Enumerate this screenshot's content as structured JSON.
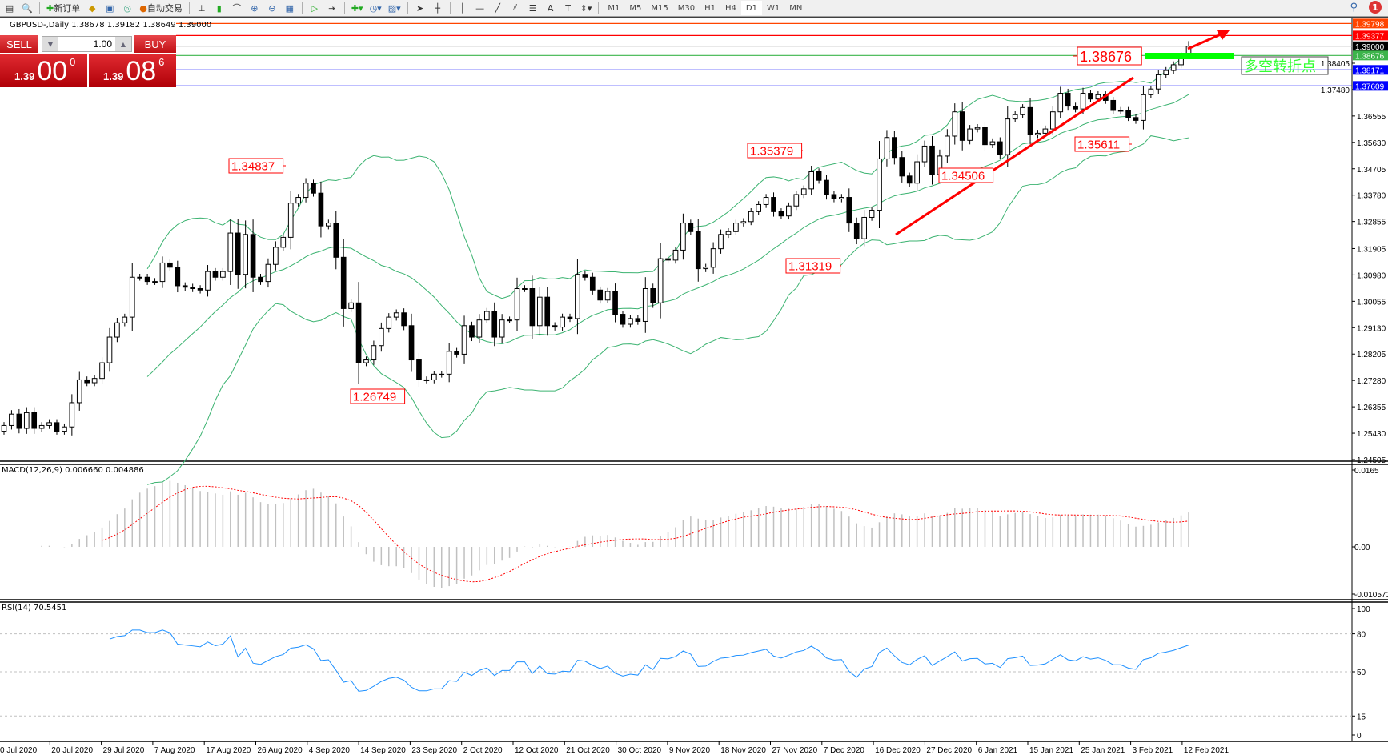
{
  "toolbar": {
    "new_order": "新订单",
    "auto_trading": "自动交易",
    "timeframes": [
      "M1",
      "M5",
      "M15",
      "M30",
      "H1",
      "H4",
      "D1",
      "W1",
      "MN"
    ],
    "icons": [
      "chart-icon",
      "profile-icon",
      "new-order-icon",
      "market-icon",
      "navigator-icon",
      "signal-icon",
      "autotrade-icon",
      "bar-chart-icon",
      "candle-chart-icon",
      "line-chart-icon",
      "zoom-in-icon",
      "zoom-out-icon",
      "tile-icon",
      "autoscroll-icon",
      "shift-icon",
      "indicator-icon",
      "period-icon",
      "template-icon",
      "cursor-icon",
      "crosshair-icon",
      "vline-icon",
      "hline-icon",
      "trendline-icon",
      "channel-icon",
      "fibo-icon",
      "text-icon",
      "label-icon",
      "arrows-icon"
    ],
    "notifications": "1"
  },
  "chart": {
    "header": "GBPUSD-,Daily  1.38678 1.39182 1.38649 1.39000",
    "trade_panel": {
      "sell": "SELL",
      "buy": "BUY",
      "lot": "1.00",
      "sell_small": "1.39",
      "sell_big": "00",
      "sell_sup": "0",
      "buy_small": "1.39",
      "buy_big": "08",
      "buy_sup": "6"
    },
    "colors": {
      "bull": "#ffffff",
      "bear": "#000000",
      "bands": "#3cb371",
      "macd_hist": "#c0c0c0",
      "macd_signal": "#ff0000",
      "rsi": "#1e90ff"
    },
    "price_axis": [
      "1.24505",
      "1.25430",
      "1.26355",
      "1.27280",
      "1.28205",
      "1.29130",
      "1.30055",
      "1.30980",
      "1.31905",
      "1.32855",
      "1.33780",
      "1.34705",
      "1.35630",
      "1.36555",
      "1.37480",
      "1.38405"
    ],
    "levels": [
      {
        "value": 1.39798,
        "label": "1.39798",
        "color": "#ff4500"
      },
      {
        "value": 1.39377,
        "label": "1.39377",
        "color": "#ff0000"
      },
      {
        "value": 1.39,
        "label": "1.39000",
        "color": "#000000",
        "line": "#c0c0c0"
      },
      {
        "value": 1.38676,
        "label": "1.38676",
        "color": "#3cb44b"
      },
      {
        "value": 1.38171,
        "label": "1.38171",
        "color": "#0000ff"
      },
      {
        "value": 1.37609,
        "label": "1.37609",
        "color": "#0000ff"
      }
    ],
    "annotations": [
      "1.34837",
      "1.26749",
      "1.35379",
      "1.31319",
      "1.34506",
      "1.35611",
      "1.38676"
    ],
    "note_text": "多空转折点",
    "time_axis": [
      "0 Jul 2020",
      "20 Jul 2020",
      "29 Jul 2020",
      "7 Aug 2020",
      "17 Aug 2020",
      "26 Aug 2020",
      "4 Sep 2020",
      "14 Sep 2020",
      "23 Sep 2020",
      "2 Oct 2020",
      "12 Oct 2020",
      "21 Oct 2020",
      "30 Oct 2020",
      "9 Nov 2020",
      "18 Nov 2020",
      "27 Nov 2020",
      "7 Dec 2020",
      "16 Dec 2020",
      "27 Dec 2020",
      "6 Jan 2021",
      "15 Jan 2021",
      "25 Jan 2021",
      "3 Feb 2021",
      "12 Feb 2021"
    ]
  },
  "macd": {
    "title": "MACD(12,26,9) 0.006660 0.004886",
    "axis": [
      "0.0165",
      "0.00",
      "-0.010571"
    ]
  },
  "rsi": {
    "title": "RSI(14) 70.5451",
    "axis": [
      "100",
      "80",
      "50",
      "15",
      "0"
    ]
  },
  "chart_data": {
    "type": "candlestick",
    "symbol": "GBPUSD",
    "timeframe": "Daily",
    "ylim": [
      1.24505,
      1.39798
    ],
    "last_bar": {
      "open": 1.38678,
      "high": 1.39182,
      "low": 1.38649,
      "close": 1.39
    },
    "closes": [
      1.257,
      1.261,
      1.256,
      1.2615,
      1.256,
      1.257,
      1.258,
      1.255,
      1.2565,
      1.265,
      1.273,
      1.272,
      1.2735,
      1.279,
      1.288,
      1.293,
      1.295,
      1.309,
      1.309,
      1.3075,
      1.3075,
      1.314,
      1.3125,
      1.306,
      1.3055,
      1.305,
      1.3045,
      1.311,
      1.309,
      1.311,
      1.3245,
      1.31,
      1.324,
      1.309,
      1.3075,
      1.3135,
      1.3195,
      1.323,
      1.335,
      1.337,
      1.342,
      1.3385,
      1.327,
      1.328,
      1.316,
      1.298,
      1.3,
      1.279,
      1.28,
      1.285,
      1.291,
      1.295,
      1.2965,
      1.292,
      1.28,
      1.273,
      1.273,
      1.275,
      1.275,
      1.283,
      1.282,
      1.292,
      1.288,
      1.294,
      1.297,
      1.288,
      1.294,
      1.294,
      1.305,
      1.305,
      1.292,
      1.302,
      1.292,
      1.2915,
      1.295,
      1.2945,
      1.31,
      1.309,
      1.3045,
      1.301,
      1.304,
      1.296,
      1.2925,
      1.2945,
      1.2935,
      1.305,
      1.3,
      1.3155,
      1.315,
      1.3185,
      1.328,
      1.325,
      1.312,
      1.3125,
      1.319,
      1.324,
      1.325,
      1.328,
      1.3285,
      1.332,
      1.3345,
      1.337,
      1.332,
      1.3305,
      1.334,
      1.338,
      1.34,
      1.346,
      1.343,
      1.338,
      1.3365,
      1.337,
      1.328,
      1.3225,
      1.33,
      1.3325,
      1.3505,
      1.358,
      1.351,
      1.3445,
      1.342,
      1.3495,
      1.355,
      1.345,
      1.3515,
      1.3585,
      1.367,
      1.357,
      1.361,
      1.3615,
      1.3555,
      1.3565,
      1.352,
      1.3645,
      1.366,
      1.3685,
      1.359,
      1.3595,
      1.361,
      1.367,
      1.3735,
      1.369,
      1.368,
      1.3735,
      1.3715,
      1.373,
      1.371,
      1.3675,
      1.3675,
      1.365,
      1.364,
      1.373,
      1.375,
      1.38,
      1.3815,
      1.3835,
      1.38678,
      1.39
    ],
    "indicators": [
      "Bollinger Bands(20,2)",
      "MACD(12,26,9)",
      "RSI(14)"
    ],
    "rsi_levels": [
      80,
      50,
      15
    ]
  }
}
